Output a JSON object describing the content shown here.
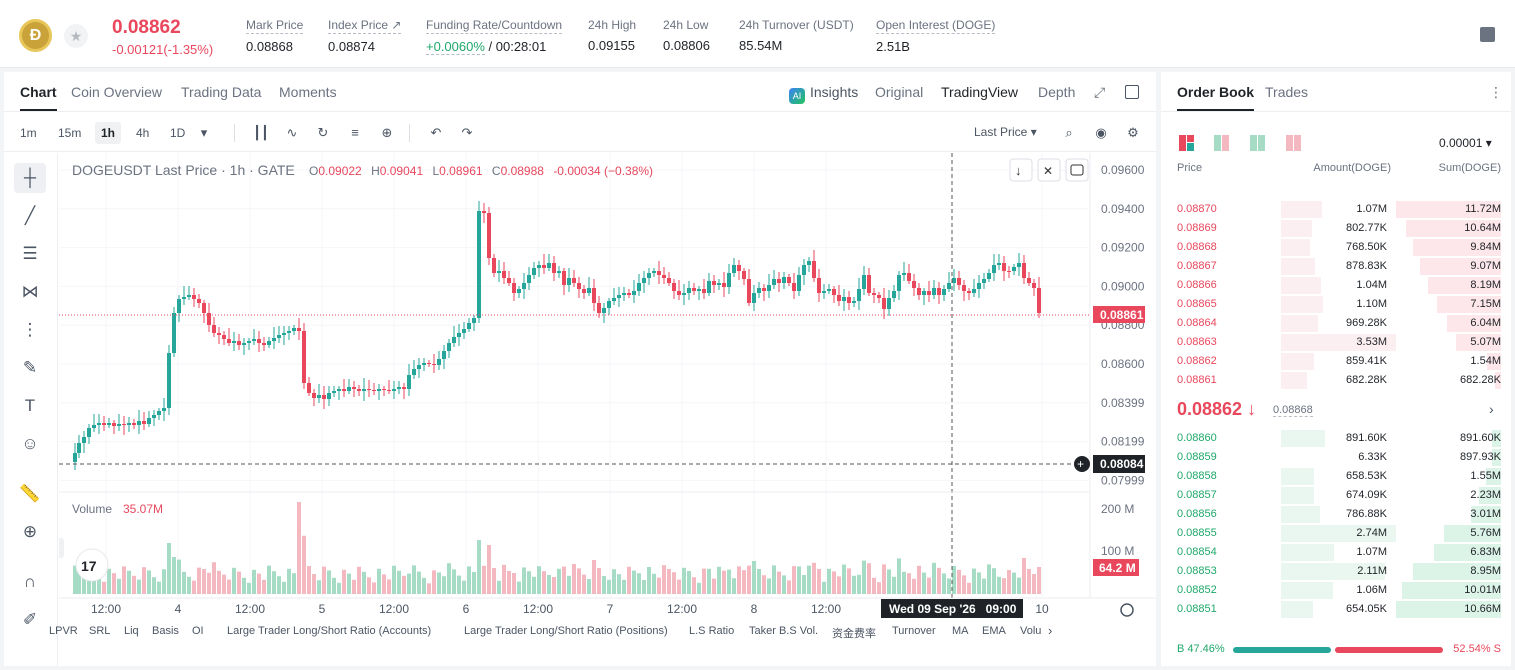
{
  "header": {
    "coin_logo_text": "Ð",
    "fav_icon": "star-icon",
    "price": "0.08862",
    "change": "-0.00121(-1.35%)",
    "stats": [
      {
        "label": "Mark Price",
        "value": "0.08868"
      },
      {
        "label": "Index Price ↗",
        "value": "0.08874"
      },
      {
        "label": "Funding Rate/Countdown",
        "value_green": "+0.0060%",
        "value": " / 00:28:01"
      },
      {
        "label": "24h High",
        "value": "0.09155"
      },
      {
        "label": "24h Low",
        "value": "0.08806"
      },
      {
        "label": "24h Turnover (USDT)",
        "value": "85.54M"
      },
      {
        "label": "Open Interest (DOGE)",
        "value": "2.51B"
      }
    ]
  },
  "chart_tabs": {
    "left": [
      "Chart",
      "Coin Overview",
      "Trading Data",
      "Moments"
    ],
    "right": {
      "insights": "Insights",
      "ai_badge": "AI",
      "original": "Original",
      "tradingview": "TradingView",
      "depth": "Depth"
    }
  },
  "toolbar": {
    "timeframes": [
      "1m",
      "15m",
      "1h",
      "4h",
      "1D"
    ],
    "active_timeframe": "1h",
    "last_price_label": "Last Price"
  },
  "chart": {
    "legend_title": "DOGEUSDT Last Price · 1h · GATE",
    "ohlc": {
      "o_label": "O",
      "o": "0.09022",
      "h_label": "H",
      "h": "0.09041",
      "l_label": "L",
      "l": "0.08961",
      "c_label": "C",
      "c": "0.08988",
      "chg": "-0.00034 (−0.38%)"
    },
    "price_ticks": [
      "0.09600",
      "0.09400",
      "0.09200",
      "0.09000",
      "0.08800",
      "0.08600",
      "0.08399",
      "0.08199",
      "0.07999"
    ],
    "current_price_label": "0.08861",
    "crosshair_price_label": "0.08084",
    "volume_label": "Volume",
    "volume_value": "35.07M",
    "volume_ticks": [
      "200 M",
      "100 M"
    ],
    "volume_current_label": "64.2 M",
    "time_ticks": [
      "12:00",
      "4",
      "12:00",
      "5",
      "12:00",
      "6",
      "12:00",
      "7",
      "12:00",
      "8",
      "12:00",
      "10"
    ],
    "crosshair_time_label": "Wed 09 Sep '26   09:00",
    "tv_logo": "17"
  },
  "indicators": [
    "LPVR",
    "SRL",
    "Liq",
    "Basis",
    "OI",
    "Large Trader Long/Short Ratio (Accounts)",
    "Large Trader Long/Short Ratio (Positions)",
    "L.S Ratio",
    "Taker B.S Vol.",
    "资金费率",
    "Turnover",
    "MA",
    "EMA",
    "Volu"
  ],
  "order_book": {
    "tabs": [
      "Order Book",
      "Trades"
    ],
    "precision": "0.00001",
    "headers": {
      "price": "Price",
      "amount": "Amount(DOGE)",
      "sum": "Sum(DOGE)"
    },
    "asks": [
      {
        "price": "0.08870",
        "amount": "1.07M",
        "sum": "11.72M"
      },
      {
        "price": "0.08869",
        "amount": "802.77K",
        "sum": "10.64M"
      },
      {
        "price": "0.08868",
        "amount": "768.50K",
        "sum": "9.84M"
      },
      {
        "price": "0.08867",
        "amount": "878.83K",
        "sum": "9.07M"
      },
      {
        "price": "0.08866",
        "amount": "1.04M",
        "sum": "8.19M"
      },
      {
        "price": "0.08865",
        "amount": "1.10M",
        "sum": "7.15M"
      },
      {
        "price": "0.08864",
        "amount": "969.28K",
        "sum": "6.04M"
      },
      {
        "price": "0.08863",
        "amount": "3.53M",
        "sum": "5.07M"
      },
      {
        "price": "0.08862",
        "amount": "859.41K",
        "sum": "1.54M"
      },
      {
        "price": "0.08861",
        "amount": "682.28K",
        "sum": "682.28K"
      }
    ],
    "mid_price": "0.08862 ↓",
    "mid_mark": "0.08868",
    "bids": [
      {
        "price": "0.08860",
        "amount": "891.60K",
        "sum": "891.60K"
      },
      {
        "price": "0.08859",
        "amount": "6.33K",
        "sum": "897.93K"
      },
      {
        "price": "0.08858",
        "amount": "658.53K",
        "sum": "1.55M"
      },
      {
        "price": "0.08857",
        "amount": "674.09K",
        "sum": "2.23M"
      },
      {
        "price": "0.08856",
        "amount": "786.88K",
        "sum": "3.01M"
      },
      {
        "price": "0.08855",
        "amount": "2.74M",
        "sum": "5.76M"
      },
      {
        "price": "0.08854",
        "amount": "1.07M",
        "sum": "6.83M"
      },
      {
        "price": "0.08853",
        "amount": "2.11M",
        "sum": "8.95M"
      },
      {
        "price": "0.08852",
        "amount": "1.06M",
        "sum": "10.01M"
      },
      {
        "price": "0.08851",
        "amount": "654.05K",
        "sum": "10.66M"
      }
    ],
    "buy_ratio": "B 47.46%",
    "sell_ratio": "52.54% S",
    "buy_fraction": 0.4746
  },
  "colors": {
    "up": "#26a69a",
    "down": "#e8475c",
    "accent": "#1f2328"
  }
}
